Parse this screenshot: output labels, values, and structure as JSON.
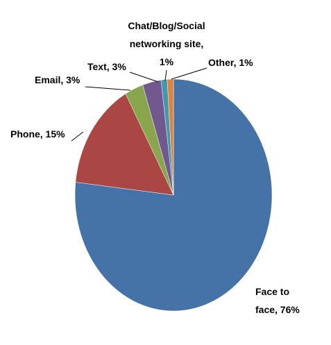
{
  "chart_data": {
    "type": "pie",
    "values": [
      76,
      15,
      3,
      3,
      1,
      1
    ],
    "value_labels": [
      "Face to face, 76%",
      "Phone, 15%",
      "Email, 3%",
      "Text, 3%",
      "Chat/Blog/Social networking site, 1%",
      "Other, 1%"
    ],
    "colors": [
      "#4572a7",
      "#aa4643",
      "#89a54e",
      "#71588f",
      "#4198af",
      "#db843d"
    ]
  }
}
